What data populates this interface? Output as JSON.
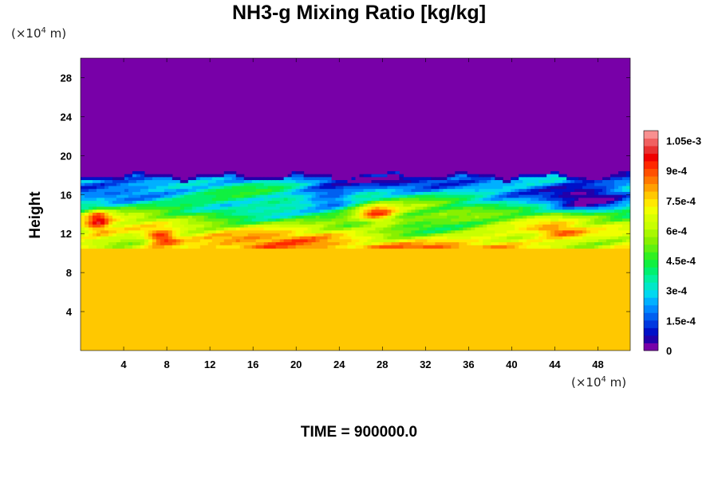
{
  "title": "NH3-g Mixing Ratio [kg/kg]",
  "time_label": "TIME = 900000.0",
  "y_unit": {
    "prefix": "(×10",
    "exp": "4",
    "suffix": " m)"
  },
  "x_unit": {
    "prefix": "(×10",
    "exp": "4",
    "suffix": " m)"
  },
  "colors": {
    "background_region": "#7800a8",
    "lower_region": "#d8ff00"
  },
  "chart_data": {
    "type": "heatmap",
    "title": "NH3-g Mixing Ratio [kg/kg]",
    "ylabel": "Height",
    "xlabel": "",
    "x_unit": "×10^4 m",
    "y_unit": "×10^4 m",
    "xlim": [
      0,
      51
    ],
    "ylim": [
      0,
      30
    ],
    "x_ticks": [
      {
        "value": 4,
        "label": "4"
      },
      {
        "value": 8,
        "label": "8"
      },
      {
        "value": 12,
        "label": "12"
      },
      {
        "value": 16,
        "label": "16"
      },
      {
        "value": 20,
        "label": "20"
      },
      {
        "value": 24,
        "label": "24"
      },
      {
        "value": 28,
        "label": "28"
      },
      {
        "value": 32,
        "label": "32"
      },
      {
        "value": 36,
        "label": "36"
      },
      {
        "value": 40,
        "label": "40"
      },
      {
        "value": 44,
        "label": "44"
      },
      {
        "value": 48,
        "label": "48"
      }
    ],
    "y_ticks": [
      {
        "value": 4,
        "label": "4"
      },
      {
        "value": 8,
        "label": "8"
      },
      {
        "value": 12,
        "label": "12"
      },
      {
        "value": 16,
        "label": "16"
      },
      {
        "value": 20,
        "label": "20"
      },
      {
        "value": 24,
        "label": "24"
      },
      {
        "value": 28,
        "label": "28"
      }
    ],
    "colorbar": {
      "min": 0,
      "max": 0.0011,
      "levels": [
        "#7800a8",
        "#2200aa",
        "#0010c8",
        "#0038e0",
        "#0060f0",
        "#0088ff",
        "#00b0ff",
        "#00d8f0",
        "#00e8c8",
        "#00f0a0",
        "#00f070",
        "#10f040",
        "#30f020",
        "#60f010",
        "#88f000",
        "#a8f800",
        "#c8ff00",
        "#d8ff00",
        "#f0ff00",
        "#ffe800",
        "#ffc800",
        "#ffa000",
        "#ff7800",
        "#ff5000",
        "#ff2800",
        "#f00000",
        "#e83030",
        "#f06060",
        "#f89090"
      ],
      "tick_labels": [
        {
          "value": 0,
          "label": "0"
        },
        {
          "value": 0.00015,
          "label": "1.5e-4"
        },
        {
          "value": 0.0003,
          "label": "3e-4"
        },
        {
          "value": 0.00045,
          "label": "4.5e-4"
        },
        {
          "value": 0.0006,
          "label": "6e-4"
        },
        {
          "value": 0.00075,
          "label": "7.5e-4"
        },
        {
          "value": 0.0009,
          "label": "9e-4"
        },
        {
          "value": 0.00105,
          "label": "1.05e-3"
        }
      ]
    },
    "upper_value": 0,
    "lower_value": 0.00078,
    "layer_top_height": 18,
    "layer_bottom_height": 10.5
  }
}
